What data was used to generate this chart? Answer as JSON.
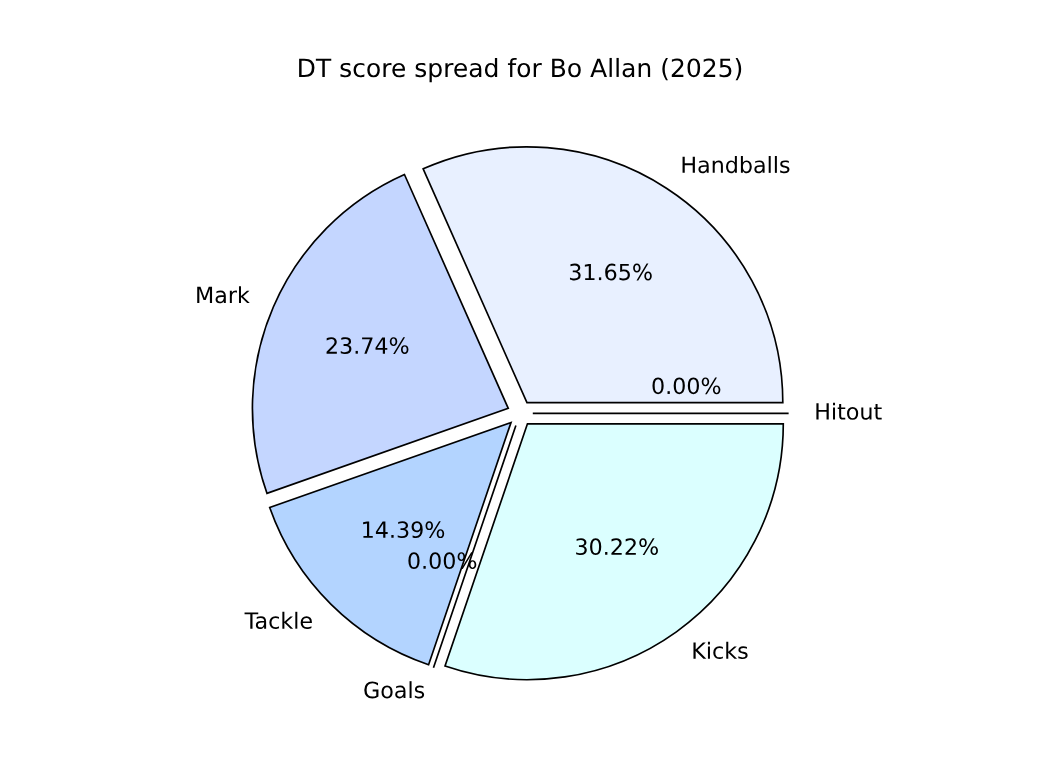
{
  "chart_data": {
    "type": "pie",
    "title": "DT score spread for Bo Allan (2025)",
    "categories": [
      "Handballs",
      "Mark",
      "Tackle",
      "Goals",
      "Kicks",
      "Hitout"
    ],
    "values": [
      31.65,
      23.74,
      14.39,
      0,
      30.22,
      0
    ],
    "colors": [
      "#e8f0ff",
      "#c4d6ff",
      "#b3d4ff",
      "#ffffff",
      "#dbffff",
      "#ffffff"
    ],
    "value_labels": [
      "31.65%",
      "23.74%",
      "14.39%",
      "0.00%",
      "30.22%",
      "0.00%"
    ],
    "legend": false
  }
}
